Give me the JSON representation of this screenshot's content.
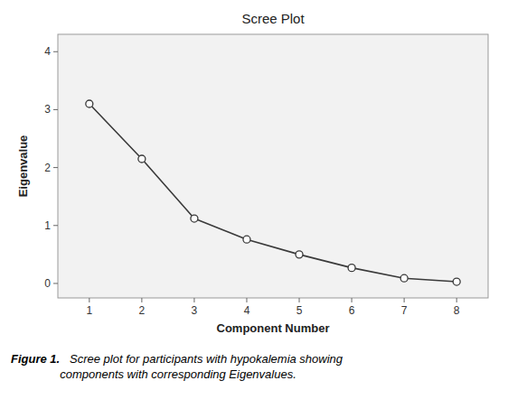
{
  "chart_data": {
    "type": "line",
    "title": "Scree Plot",
    "x_label": "Component Number",
    "y_label": "Eigenvalue",
    "x": [
      1,
      2,
      3,
      4,
      5,
      6,
      7,
      8
    ],
    "values": [
      3.1,
      2.15,
      1.12,
      0.76,
      0.5,
      0.27,
      0.09,
      0.03
    ],
    "color": "#3a3a3a",
    "marker": "circle",
    "xlim": [
      0.4,
      8.6
    ],
    "ylim": [
      -0.25,
      4.3
    ],
    "xticks": [
      1,
      2,
      3,
      4,
      5,
      6,
      7,
      8
    ],
    "yticks": [
      0,
      1,
      2,
      3,
      4
    ],
    "grid": false,
    "annotations": [
      "Figure 1.",
      "   Scree plot for participants with hypokalemia showing\ncomponents with corresponding Eigenvalues."
    ]
  }
}
